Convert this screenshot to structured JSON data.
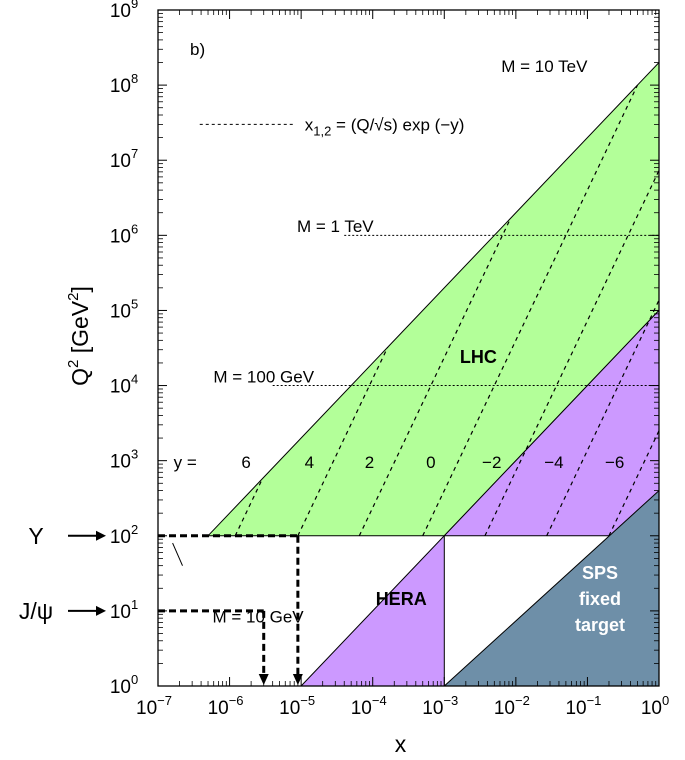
{
  "chart_data": {
    "type": "area",
    "panel_label": "b)",
    "xlabel": "x",
    "ylabel": "Q",
    "ylabel_sup": "2",
    "ylabel_unit_pre": " [GeV",
    "ylabel_unit_sup": "2",
    "ylabel_unit_post": "]",
    "x_scale": "log",
    "y_scale": "log",
    "xlim": [
      1e-07,
      1
    ],
    "ylim": [
      1,
      1000000000.0
    ],
    "x_ticks": [
      {
        "value": 1e-07,
        "base": "10",
        "exp": "−7"
      },
      {
        "value": 1e-06,
        "base": "10",
        "exp": "−6"
      },
      {
        "value": 1e-05,
        "base": "10",
        "exp": "−5"
      },
      {
        "value": 0.0001,
        "base": "10",
        "exp": "−4"
      },
      {
        "value": 0.001,
        "base": "10",
        "exp": "−3"
      },
      {
        "value": 0.01,
        "base": "10",
        "exp": "−2"
      },
      {
        "value": 0.1,
        "base": "10",
        "exp": "−1"
      },
      {
        "value": 1,
        "base": "10",
        "exp": "0"
      }
    ],
    "y_ticks": [
      {
        "value": 1,
        "base": "10",
        "exp": "0"
      },
      {
        "value": 10,
        "base": "10",
        "exp": "1"
      },
      {
        "value": 100,
        "base": "10",
        "exp": "2"
      },
      {
        "value": 1000.0,
        "base": "10",
        "exp": "3"
      },
      {
        "value": 10000.0,
        "base": "10",
        "exp": "4"
      },
      {
        "value": 100000.0,
        "base": "10",
        "exp": "5"
      },
      {
        "value": 1000000.0,
        "base": "10",
        "exp": "6"
      },
      {
        "value": 10000000.0,
        "base": "10",
        "exp": "7"
      },
      {
        "value": 100000000.0,
        "base": "10",
        "exp": "8"
      },
      {
        "value": 1000000000.0,
        "base": "10",
        "exp": "9"
      }
    ],
    "regions": [
      {
        "name": "LHC",
        "lines": [
          "LHC"
        ],
        "color": "#b3ff99",
        "polygon": [
          [
            5e-07,
            100
          ],
          [
            1,
            200000000.0
          ],
          [
            1,
            100000.0
          ],
          [
            0.001,
            100
          ]
        ],
        "label_at": [
          0.003,
          20000.0
        ],
        "label_color": "#000000"
      },
      {
        "name": "HERA",
        "lines": [
          "HERA"
        ],
        "color": "#cc99ff",
        "polygon": [
          [
            1e-05,
            1
          ],
          [
            1,
            100000.0
          ],
          [
            1,
            100
          ],
          [
            0.001,
            100
          ],
          [
            0.001,
            1
          ]
        ],
        "label_at": [
          0.00025,
          12
        ],
        "label_color": "#000000"
      },
      {
        "name": "SPS fixed target",
        "lines": [
          "SPS",
          "fixed",
          "target"
        ],
        "color": "#6e8fa8",
        "polygon": [
          [
            0.001,
            1
          ],
          [
            1,
            400
          ],
          [
            1,
            1
          ]
        ],
        "label_at": [
          0.15,
          12
        ],
        "label_color": "#ffffff"
      }
    ],
    "legend": {
      "text": "x",
      "sub": "1,2",
      "rest": " = (Q/√s) exp (−y)",
      "at": [
        4.5e-07,
        30000000.0
      ]
    },
    "y_rapidity_prefix": "y =",
    "y_rapidity_prefix_at": [
      2.4e-07,
      800
    ],
    "y_lines": [
      {
        "label": "6",
        "x_at_100": 1.2e-06,
        "label_at": [
          1.7e-06,
          800
        ]
      },
      {
        "label": "4",
        "x_at_100": 9e-06,
        "label_at": [
          1.3e-05,
          800
        ]
      },
      {
        "label": "2",
        "x_at_100": 6.5e-05,
        "label_at": [
          9e-05,
          800
        ]
      },
      {
        "label": "0",
        "x_at_100": 0.0005,
        "label_at": [
          0.00065,
          800
        ]
      },
      {
        "label": "−2",
        "x_at_100": 0.0037,
        "label_at": [
          0.0046,
          800
        ]
      },
      {
        "label": "−4",
        "x_at_100": 0.027,
        "label_at": [
          0.034,
          800
        ]
      },
      {
        "label": "−6",
        "x_at_100": 0.2,
        "label_at": [
          0.24,
          800
        ]
      }
    ],
    "mass_lines": [
      {
        "label": "M = 10 TeV",
        "q2": 100000000.0,
        "x_from": null,
        "label_at": [
          0.025,
          150000000.0
        ]
      },
      {
        "label": "M = 1 TeV",
        "q2": 1000000.0,
        "x_from": 1e-05,
        "label_at": [
          3e-05,
          1100000.0
        ]
      },
      {
        "label": "M = 100 GeV",
        "q2": 10000.0,
        "x_from": 1e-06,
        "label_at": [
          3e-06,
          11000.0
        ]
      },
      {
        "label": "M = 10 GeV",
        "q2": 100,
        "x_from": null,
        "label_at": [
          2.5e-06,
          7
        ]
      }
    ],
    "resonances": [
      {
        "name": "Y",
        "q2": 100,
        "x_arrow": 9e-06
      },
      {
        "name": "J/ψ",
        "q2": 10,
        "x_arrow": 3e-06
      }
    ],
    "grid": false
  }
}
